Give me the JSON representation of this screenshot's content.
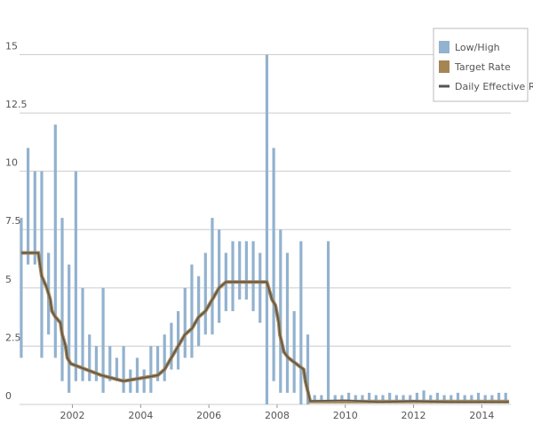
{
  "chart_data": {
    "type": "range-line",
    "xlim": [
      2000.45,
      2014.85
    ],
    "xticks": [
      2002,
      2004,
      2006,
      2008,
      2010,
      2012,
      2014
    ],
    "ylim": [
      0,
      16.2
    ],
    "yticks": [
      0,
      2.5,
      5,
      7.5,
      10,
      12.5,
      15
    ],
    "grid": true,
    "legend": "top-right",
    "ranges": {
      "name": "Low/High",
      "color": "#92b2cf",
      "x": [
        2000.5,
        2000.7,
        2000.9,
        2001.1,
        2001.3,
        2001.5,
        2001.7,
        2001.9,
        2002.1,
        2002.3,
        2002.5,
        2002.7,
        2002.9,
        2003.1,
        2003.3,
        2003.5,
        2003.7,
        2003.9,
        2004.1,
        2004.3,
        2004.5,
        2004.7,
        2004.9,
        2005.1,
        2005.3,
        2005.5,
        2005.7,
        2005.9,
        2006.1,
        2006.3,
        2006.5,
        2006.7,
        2006.9,
        2007.1,
        2007.3,
        2007.5,
        2007.7,
        2007.9,
        2008.1,
        2008.3,
        2008.5,
        2008.7,
        2008.9,
        2009.1,
        2009.3,
        2009.5,
        2009.7,
        2009.9,
        2010.1,
        2010.3,
        2010.5,
        2010.7,
        2010.9,
        2011.1,
        2011.3,
        2011.5,
        2011.7,
        2011.9,
        2012.1,
        2012.3,
        2012.5,
        2012.7,
        2012.9,
        2013.1,
        2013.3,
        2013.5,
        2013.7,
        2013.9,
        2014.1,
        2014.3,
        2014.5,
        2014.7
      ],
      "low": [
        2,
        6,
        6,
        2,
        3,
        2,
        1,
        0.5,
        1,
        1,
        1,
        1,
        0.5,
        1,
        1,
        0.5,
        0.5,
        0.5,
        0.5,
        0.5,
        1,
        1,
        1.5,
        1.5,
        2,
        2,
        2.5,
        3,
        3,
        3.5,
        4,
        4,
        4.5,
        4.5,
        4,
        3.5,
        0,
        1,
        0.5,
        0.5,
        0.5,
        0,
        0,
        0.1,
        0.1,
        0.05,
        0.05,
        0.05,
        0.05,
        0.05,
        0.05,
        0.05,
        0.05,
        0.05,
        0.05,
        0.05,
        0.05,
        0.05,
        0.05,
        0.05,
        0.05,
        0.05,
        0.05,
        0.05,
        0.05,
        0.05,
        0.05,
        0.05,
        0.05,
        0.05,
        0.05,
        0.05
      ],
      "high": [
        8,
        11,
        10,
        10,
        6.5,
        12,
        8,
        6,
        10,
        5,
        3,
        2.5,
        5,
        2.5,
        2,
        2.5,
        1.5,
        2,
        1.5,
        2.5,
        2.5,
        3,
        3.5,
        4,
        5,
        6,
        5.5,
        6.5,
        8,
        7.5,
        6.5,
        7,
        7,
        7,
        7,
        6.5,
        15,
        11,
        7.5,
        6.5,
        4,
        7,
        3,
        0.4,
        0.4,
        7,
        0.4,
        0.4,
        0.5,
        0.4,
        0.4,
        0.5,
        0.4,
        0.4,
        0.5,
        0.4,
        0.4,
        0.4,
        0.5,
        0.6,
        0.4,
        0.5,
        0.4,
        0.4,
        0.5,
        0.4,
        0.4,
        0.5,
        0.4,
        0.4,
        0.5,
        0.5
      ]
    },
    "series": [
      {
        "name": "Target Rate",
        "color": "#a58554",
        "x": [
          2000.5,
          2001.0,
          2001.05,
          2001.1,
          2001.25,
          2001.35,
          2001.4,
          2001.5,
          2001.65,
          2001.7,
          2001.8,
          2001.85,
          2001.95,
          2002.85,
          2003.5,
          2004.5,
          2004.7,
          2004.9,
          2005.1,
          2005.3,
          2005.5,
          2005.7,
          2005.9,
          2006.1,
          2006.3,
          2006.5,
          2007.7,
          2007.8,
          2007.85,
          2007.95,
          2008.05,
          2008.08,
          2008.2,
          2008.33,
          2008.78,
          2008.83,
          2008.97,
          2014.8
        ],
        "values": [
          6.5,
          6.5,
          6,
          5.5,
          5,
          4.5,
          4,
          3.75,
          3.5,
          3,
          2.5,
          2,
          1.75,
          1.25,
          1,
          1.25,
          1.5,
          2,
          2.5,
          3,
          3.25,
          3.75,
          4,
          4.5,
          5,
          5.25,
          5.25,
          4.75,
          4.5,
          4.25,
          3.5,
          3,
          2.25,
          2,
          1.5,
          1,
          0.125,
          0.125
        ]
      },
      {
        "name": "Daily Effective Rate",
        "color": "#555555",
        "x": [
          2000.5,
          2001.0,
          2001.05,
          2001.1,
          2001.25,
          2001.35,
          2001.4,
          2001.5,
          2001.65,
          2001.7,
          2001.8,
          2001.85,
          2001.95,
          2002.85,
          2003.5,
          2004.5,
          2004.7,
          2004.9,
          2005.1,
          2005.3,
          2005.5,
          2005.7,
          2005.9,
          2006.1,
          2006.3,
          2006.5,
          2007.7,
          2007.8,
          2007.85,
          2007.95,
          2008.05,
          2008.08,
          2008.2,
          2008.33,
          2008.78,
          2008.83,
          2008.97,
          2010,
          2011,
          2012,
          2013,
          2014.8
        ],
        "values": [
          6.5,
          6.5,
          6,
          5.5,
          5,
          4.5,
          4,
          3.75,
          3.5,
          3,
          2.5,
          2,
          1.75,
          1.25,
          1,
          1.25,
          1.5,
          2,
          2.5,
          3,
          3.25,
          3.75,
          4,
          4.5,
          5,
          5.25,
          5.25,
          4.75,
          4.5,
          4.25,
          3.5,
          3,
          2.25,
          2,
          1.5,
          1,
          0.15,
          0.18,
          0.1,
          0.15,
          0.1,
          0.1
        ]
      }
    ]
  }
}
